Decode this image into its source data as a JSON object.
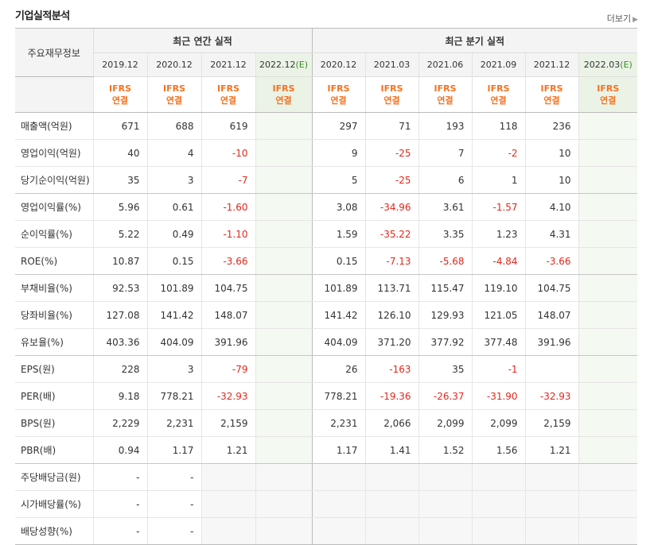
{
  "title": "기업실적분석",
  "more_label": "더보기",
  "row_header_label": "주요재무정보",
  "annual_group_label": "최근 연간 실적",
  "quarter_group_label": "최근 분기 실적",
  "periods": [
    {
      "label": "2019.12",
      "est": ""
    },
    {
      "label": "2020.12",
      "est": ""
    },
    {
      "label": "2021.12",
      "est": ""
    },
    {
      "label": "2022.12",
      "est": "(E)"
    },
    {
      "label": "2020.12",
      "est": ""
    },
    {
      "label": "2021.03",
      "est": ""
    },
    {
      "label": "2021.06",
      "est": ""
    },
    {
      "label": "2021.09",
      "est": ""
    },
    {
      "label": "2021.12",
      "est": ""
    },
    {
      "label": "2022.03",
      "est": "(E)"
    }
  ],
  "ifrs_label": "IFRS",
  "consolidated_label": "연결",
  "rows": [
    {
      "label": "매출액(억원)",
      "values": [
        "671",
        "688",
        "619",
        "",
        "297",
        "71",
        "193",
        "118",
        "236",
        ""
      ]
    },
    {
      "label": "영업이익(억원)",
      "values": [
        "40",
        "4",
        "-10",
        "",
        "9",
        "-25",
        "7",
        "-2",
        "10",
        ""
      ]
    },
    {
      "label": "당기순이익(억원)",
      "values": [
        "35",
        "3",
        "-7",
        "",
        "5",
        "-25",
        "6",
        "1",
        "10",
        ""
      ]
    },
    {
      "label": "영업이익률(%)",
      "values": [
        "5.96",
        "0.61",
        "-1.60",
        "",
        "3.08",
        "-34.96",
        "3.61",
        "-1.57",
        "4.10",
        ""
      ]
    },
    {
      "label": "순이익률(%)",
      "values": [
        "5.22",
        "0.49",
        "-1.10",
        "",
        "1.59",
        "-35.22",
        "3.35",
        "1.23",
        "4.31",
        ""
      ]
    },
    {
      "label": "ROE(%)",
      "values": [
        "10.87",
        "0.15",
        "-3.66",
        "",
        "0.15",
        "-7.13",
        "-5.68",
        "-4.84",
        "-3.66",
        ""
      ]
    },
    {
      "label": "부채비율(%)",
      "values": [
        "92.53",
        "101.89",
        "104.75",
        "",
        "101.89",
        "113.71",
        "115.47",
        "119.10",
        "104.75",
        ""
      ]
    },
    {
      "label": "당좌비율(%)",
      "values": [
        "127.08",
        "141.42",
        "148.07",
        "",
        "141.42",
        "126.10",
        "129.93",
        "121.05",
        "148.07",
        ""
      ]
    },
    {
      "label": "유보율(%)",
      "values": [
        "403.36",
        "404.09",
        "391.96",
        "",
        "404.09",
        "371.20",
        "377.92",
        "377.48",
        "391.96",
        ""
      ]
    },
    {
      "label": "EPS(원)",
      "values": [
        "228",
        "3",
        "-79",
        "",
        "26",
        "-163",
        "35",
        "-1",
        "",
        ""
      ]
    },
    {
      "label": "PER(배)",
      "values": [
        "9.18",
        "778.21",
        "-32.93",
        "",
        "778.21",
        "-19.36",
        "-26.37",
        "-31.90",
        "-32.93",
        ""
      ]
    },
    {
      "label": "BPS(원)",
      "values": [
        "2,229",
        "2,231",
        "2,159",
        "",
        "2,231",
        "2,066",
        "2,099",
        "2,099",
        "2,159",
        ""
      ]
    },
    {
      "label": "PBR(배)",
      "values": [
        "0.94",
        "1.17",
        "1.21",
        "",
        "1.17",
        "1.41",
        "1.52",
        "1.56",
        "1.21",
        ""
      ]
    },
    {
      "label": "주당배당금(원)",
      "values": [
        "-",
        "-",
        "",
        "",
        "",
        "",
        "",
        "",
        "",
        ""
      ]
    },
    {
      "label": "시가배당률(%)",
      "values": [
        "-",
        "-",
        "",
        "",
        "",
        "",
        "",
        "",
        "",
        ""
      ]
    },
    {
      "label": "배당성향(%)",
      "values": [
        "-",
        "-",
        "",
        "",
        "",
        "",
        "",
        "",
        "",
        ""
      ]
    }
  ],
  "colors": {
    "ifrs": "#f37321",
    "negative": "#e5261b",
    "estimate_bg": "#ebf3e6",
    "estimate_text": "#3c8c28"
  }
}
